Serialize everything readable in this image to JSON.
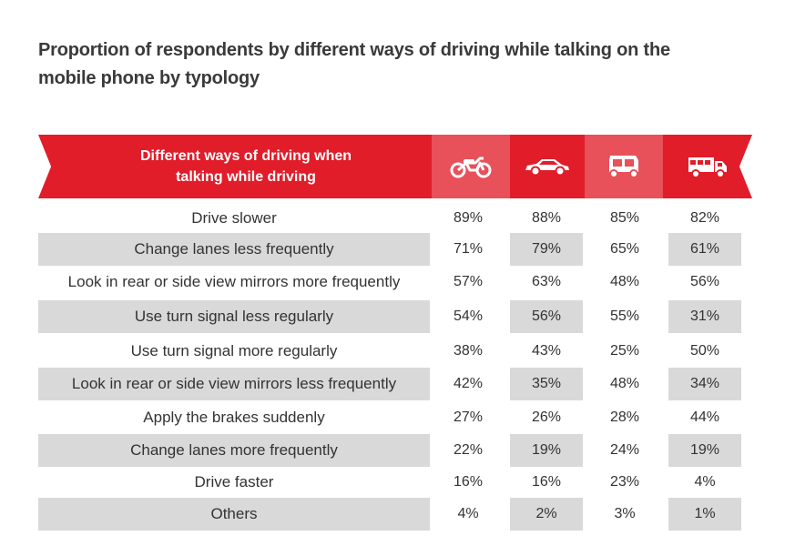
{
  "title_line1": "Proportion of respondents by different ways of driving while talking on the",
  "title_line2": "mobile phone by typology",
  "header": {
    "label_line1": "Different ways of driving when",
    "label_line2": "talking while driving"
  },
  "colors": {
    "accent": "#e11d2a",
    "accent_light": "#e8505a",
    "row_shade": "#d9d9d9"
  },
  "chart_data": {
    "type": "table",
    "title": "Proportion of respondents by different ways of driving while talking on the mobile phone by typology",
    "columns": [
      "motorcycle-icon",
      "car-icon",
      "auto-rickshaw-icon",
      "truck-icon"
    ],
    "rows": [
      {
        "label": "Drive slower",
        "values": [
          "89%",
          "88%",
          "85%",
          "82%"
        ]
      },
      {
        "label": "Change lanes less frequently",
        "values": [
          "71%",
          "79%",
          "65%",
          "61%"
        ]
      },
      {
        "label": "Look in rear or side view mirrors more frequently",
        "values": [
          "57%",
          "63%",
          "48%",
          "56%"
        ]
      },
      {
        "label": "Use turn signal less regularly",
        "values": [
          "54%",
          "56%",
          "55%",
          "31%"
        ]
      },
      {
        "label": "Use turn signal more regularly",
        "values": [
          "38%",
          "43%",
          "25%",
          "50%"
        ]
      },
      {
        "label": "Look in rear or side view mirrors less frequently",
        "values": [
          "42%",
          "35%",
          "48%",
          "34%"
        ]
      },
      {
        "label": "Apply the brakes suddenly",
        "values": [
          "27%",
          "26%",
          "28%",
          "44%"
        ]
      },
      {
        "label": "Change lanes more frequently",
        "values": [
          "22%",
          "19%",
          "24%",
          "19%"
        ]
      },
      {
        "label": "Drive faster",
        "values": [
          "16%",
          "16%",
          "23%",
          "4%"
        ]
      },
      {
        "label": "Others",
        "values": [
          "4%",
          "2%",
          "3%",
          "1%"
        ]
      }
    ]
  }
}
